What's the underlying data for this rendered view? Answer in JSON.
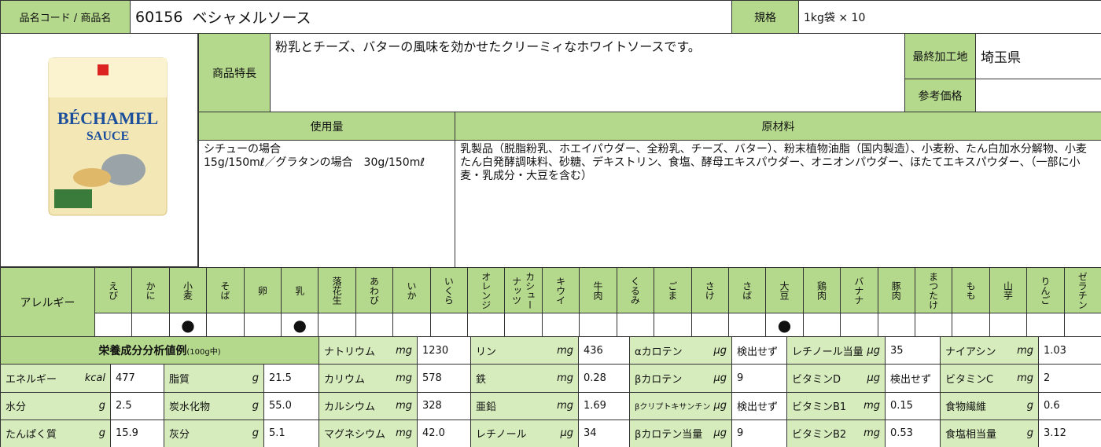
{
  "header": {
    "code_label": "品名コード / 商品名",
    "code": "60156",
    "product_name": "ベシャメルソース",
    "spec_label": "規格",
    "spec": "1kg袋 × 10"
  },
  "product_image": {
    "title_line1": "BÉCHAMEL",
    "title_line2": "SAUCE"
  },
  "features": {
    "label": "商品特長",
    "text": "粉乳とチーズ、バターの風味を効かせたクリーミィなホワイトソースです。"
  },
  "origin": {
    "label": "最終加工地",
    "value": "埼玉県"
  },
  "price": {
    "label": "参考価格"
  },
  "usage": {
    "label": "使用量",
    "lines": [
      "シチューの場合",
      "15g/150mℓ／グラタンの場合　30g/150mℓ"
    ]
  },
  "ingredients": {
    "label": "原材料",
    "text": "乳製品（脱脂粉乳、ホエイパウダー、全粉乳、チーズ、バター）、粉末植物油脂（国内製造）、小麦粉、たん白加水分解物、小麦たん白発酵調味料、砂糖、デキストリン、食塩、酵母エキスパウダー、オニオンパウダー、ほたてエキスパウダー、（一部に小麦・乳成分・大豆を含む）"
  },
  "allergy": {
    "label": "アレルギー",
    "items": [
      {
        "name": "えび"
      },
      {
        "name": "かに"
      },
      {
        "name": "小麦",
        "mark": "●"
      },
      {
        "name": "そば"
      },
      {
        "name": "卵"
      },
      {
        "name": "乳",
        "mark": "●"
      },
      {
        "name": "落花生"
      },
      {
        "name": "あわび"
      },
      {
        "name": "いか"
      },
      {
        "name": "いくら"
      },
      {
        "name": "オレンジ"
      },
      {
        "name": "カシューナッツ"
      },
      {
        "name": "キウイ"
      },
      {
        "name": "牛肉"
      },
      {
        "name": "くるみ"
      },
      {
        "name": "ごま"
      },
      {
        "name": "さけ"
      },
      {
        "name": "さば"
      },
      {
        "name": "大豆",
        "mark": "●"
      },
      {
        "name": "鶏肉"
      },
      {
        "name": "バナナ"
      },
      {
        "name": "豚肉"
      },
      {
        "name": "まつたけ"
      },
      {
        "name": "もも"
      },
      {
        "name": "山芋"
      },
      {
        "name": "りんご"
      },
      {
        "name": "ゼラチン"
      }
    ]
  },
  "nutrition": {
    "title": "栄養成分分析値例",
    "title_note": "(100g中)",
    "rows": [
      [
        {
          "name": "ナトリウム",
          "unit": "mg",
          "value": "1230"
        },
        {
          "name": "リン",
          "unit": "mg",
          "value": "436"
        },
        {
          "name": "αカロテン",
          "unit": "μg",
          "value": "検出せず"
        },
        {
          "name": "レチノール当量",
          "unit": "μg",
          "value": "35"
        },
        {
          "name": "ナイアシン",
          "unit": "mg",
          "value": "1.03"
        }
      ],
      [
        {
          "name": "エネルギー",
          "unit": "kcal",
          "value": "477"
        },
        {
          "name": "脂質",
          "unit": "g",
          "value": "21.5"
        },
        {
          "name": "カリウム",
          "unit": "mg",
          "value": "578"
        },
        {
          "name": "鉄",
          "unit": "mg",
          "value": "0.28"
        },
        {
          "name": "βカロテン",
          "unit": "μg",
          "value": "9"
        },
        {
          "name": "ビタミンD",
          "unit": "μg",
          "value": "検出せず"
        },
        {
          "name": "ビタミンC",
          "unit": "mg",
          "value": "2"
        }
      ],
      [
        {
          "name": "水分",
          "unit": "g",
          "value": "2.5"
        },
        {
          "name": "炭水化物",
          "unit": "g",
          "value": "55.0"
        },
        {
          "name": "カルシウム",
          "unit": "mg",
          "value": "328"
        },
        {
          "name": "亜鉛",
          "unit": "mg",
          "value": "1.69"
        },
        {
          "name": "βクリプトキサンチン",
          "unit": "μg",
          "value": "検出せず"
        },
        {
          "name": "ビタミンB1",
          "unit": "mg",
          "value": "0.15"
        },
        {
          "name": "食物繊維",
          "unit": "g",
          "value": "0.6"
        }
      ],
      [
        {
          "name": "たんぱく質",
          "unit": "g",
          "value": "15.9"
        },
        {
          "name": "灰分",
          "unit": "g",
          "value": "5.1"
        },
        {
          "name": "マグネシウム",
          "unit": "mg",
          "value": "42.0"
        },
        {
          "name": "レチノール",
          "unit": "μg",
          "value": "34"
        },
        {
          "name": "βカロテン当量",
          "unit": "μg",
          "value": "9"
        },
        {
          "name": "ビタミンB2",
          "unit": "mg",
          "value": "0.53"
        },
        {
          "name": "食塩相当量",
          "unit": "g",
          "value": "3.12"
        }
      ]
    ]
  }
}
